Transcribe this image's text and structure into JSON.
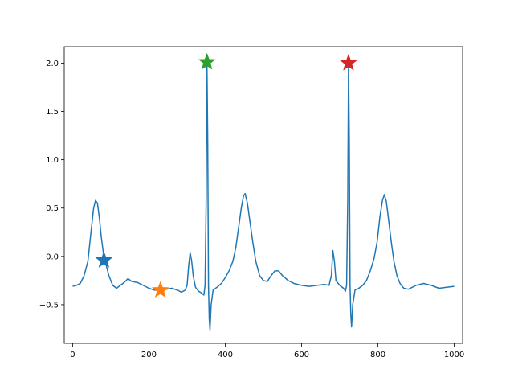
{
  "chart_data": {
    "type": "line",
    "title": "",
    "xlabel": "",
    "ylabel": "",
    "xlim": [
      -22,
      1022
    ],
    "ylim": [
      -0.9,
      2.17
    ],
    "xticks": [
      0,
      200,
      400,
      600,
      800,
      1000
    ],
    "yticks": [
      -0.5,
      0.0,
      0.5,
      1.0,
      1.5,
      2.0
    ],
    "xtick_labels": [
      "0",
      "200",
      "400",
      "600",
      "800",
      "1000"
    ],
    "ytick_labels": [
      "−0.5",
      "0.0",
      "0.5",
      "1.0",
      "1.5",
      "2.0"
    ],
    "grid": false,
    "series": [
      {
        "color": "#1f77b4",
        "points": [
          [
            0,
            -0.31
          ],
          [
            10,
            -0.3
          ],
          [
            20,
            -0.28
          ],
          [
            30,
            -0.2
          ],
          [
            40,
            -0.05
          ],
          [
            48,
            0.25
          ],
          [
            55,
            0.5
          ],
          [
            60,
            0.58
          ],
          [
            65,
            0.55
          ],
          [
            70,
            0.4
          ],
          [
            75,
            0.2
          ],
          [
            80,
            0.05
          ],
          [
            85,
            -0.05
          ],
          [
            95,
            -0.2
          ],
          [
            105,
            -0.3
          ],
          [
            115,
            -0.33
          ],
          [
            125,
            -0.3
          ],
          [
            135,
            -0.27
          ],
          [
            145,
            -0.23
          ],
          [
            155,
            -0.26
          ],
          [
            170,
            -0.27
          ],
          [
            185,
            -0.3
          ],
          [
            200,
            -0.33
          ],
          [
            215,
            -0.35
          ],
          [
            230,
            -0.35
          ],
          [
            245,
            -0.34
          ],
          [
            260,
            -0.33
          ],
          [
            275,
            -0.35
          ],
          [
            285,
            -0.37
          ],
          [
            295,
            -0.35
          ],
          [
            300,
            -0.3
          ],
          [
            304,
            -0.1
          ],
          [
            308,
            0.04
          ],
          [
            312,
            -0.05
          ],
          [
            316,
            -0.2
          ],
          [
            322,
            -0.32
          ],
          [
            330,
            -0.36
          ],
          [
            338,
            -0.38
          ],
          [
            344,
            -0.4
          ],
          [
            347,
            -0.3
          ],
          [
            350,
            0.6
          ],
          [
            352,
            2.0
          ],
          [
            354,
            1.2
          ],
          [
            356,
            -0.3
          ],
          [
            358,
            -0.65
          ],
          [
            360,
            -0.76
          ],
          [
            363,
            -0.5
          ],
          [
            368,
            -0.35
          ],
          [
            378,
            -0.32
          ],
          [
            390,
            -0.28
          ],
          [
            400,
            -0.22
          ],
          [
            410,
            -0.15
          ],
          [
            420,
            -0.05
          ],
          [
            428,
            0.1
          ],
          [
            435,
            0.3
          ],
          [
            442,
            0.5
          ],
          [
            448,
            0.63
          ],
          [
            452,
            0.65
          ],
          [
            458,
            0.55
          ],
          [
            465,
            0.35
          ],
          [
            472,
            0.15
          ],
          [
            480,
            -0.05
          ],
          [
            490,
            -0.2
          ],
          [
            500,
            -0.25
          ],
          [
            510,
            -0.26
          ],
          [
            520,
            -0.2
          ],
          [
            530,
            -0.15
          ],
          [
            540,
            -0.15
          ],
          [
            550,
            -0.2
          ],
          [
            565,
            -0.25
          ],
          [
            580,
            -0.28
          ],
          [
            600,
            -0.3
          ],
          [
            620,
            -0.31
          ],
          [
            640,
            -0.3
          ],
          [
            660,
            -0.29
          ],
          [
            672,
            -0.3
          ],
          [
            678,
            -0.2
          ],
          [
            682,
            0.06
          ],
          [
            686,
            -0.05
          ],
          [
            690,
            -0.25
          ],
          [
            700,
            -0.3
          ],
          [
            710,
            -0.33
          ],
          [
            715,
            -0.36
          ],
          [
            718,
            -0.3
          ],
          [
            721,
            0.6
          ],
          [
            723,
            2.0
          ],
          [
            725,
            1.2
          ],
          [
            727,
            -0.3
          ],
          [
            729,
            -0.6
          ],
          [
            731,
            -0.73
          ],
          [
            734,
            -0.5
          ],
          [
            740,
            -0.35
          ],
          [
            750,
            -0.33
          ],
          [
            760,
            -0.3
          ],
          [
            770,
            -0.25
          ],
          [
            780,
            -0.15
          ],
          [
            790,
            -0.02
          ],
          [
            798,
            0.15
          ],
          [
            805,
            0.4
          ],
          [
            812,
            0.58
          ],
          [
            817,
            0.64
          ],
          [
            822,
            0.57
          ],
          [
            828,
            0.38
          ],
          [
            835,
            0.15
          ],
          [
            842,
            -0.05
          ],
          [
            850,
            -0.2
          ],
          [
            858,
            -0.28
          ],
          [
            868,
            -0.33
          ],
          [
            880,
            -0.34
          ],
          [
            900,
            -0.3
          ],
          [
            920,
            -0.28
          ],
          [
            940,
            -0.3
          ],
          [
            960,
            -0.33
          ],
          [
            980,
            -0.32
          ],
          [
            1000,
            -0.31
          ]
        ]
      }
    ],
    "markers": [
      {
        "x": 82,
        "y": -0.04,
        "color": "#1f77b4",
        "shape": "star"
      },
      {
        "x": 230,
        "y": -0.35,
        "color": "#ff7f0e",
        "shape": "star"
      },
      {
        "x": 352,
        "y": 2.01,
        "color": "#2ca02c",
        "shape": "star"
      },
      {
        "x": 723,
        "y": 2.0,
        "color": "#d62728",
        "shape": "star"
      }
    ]
  }
}
